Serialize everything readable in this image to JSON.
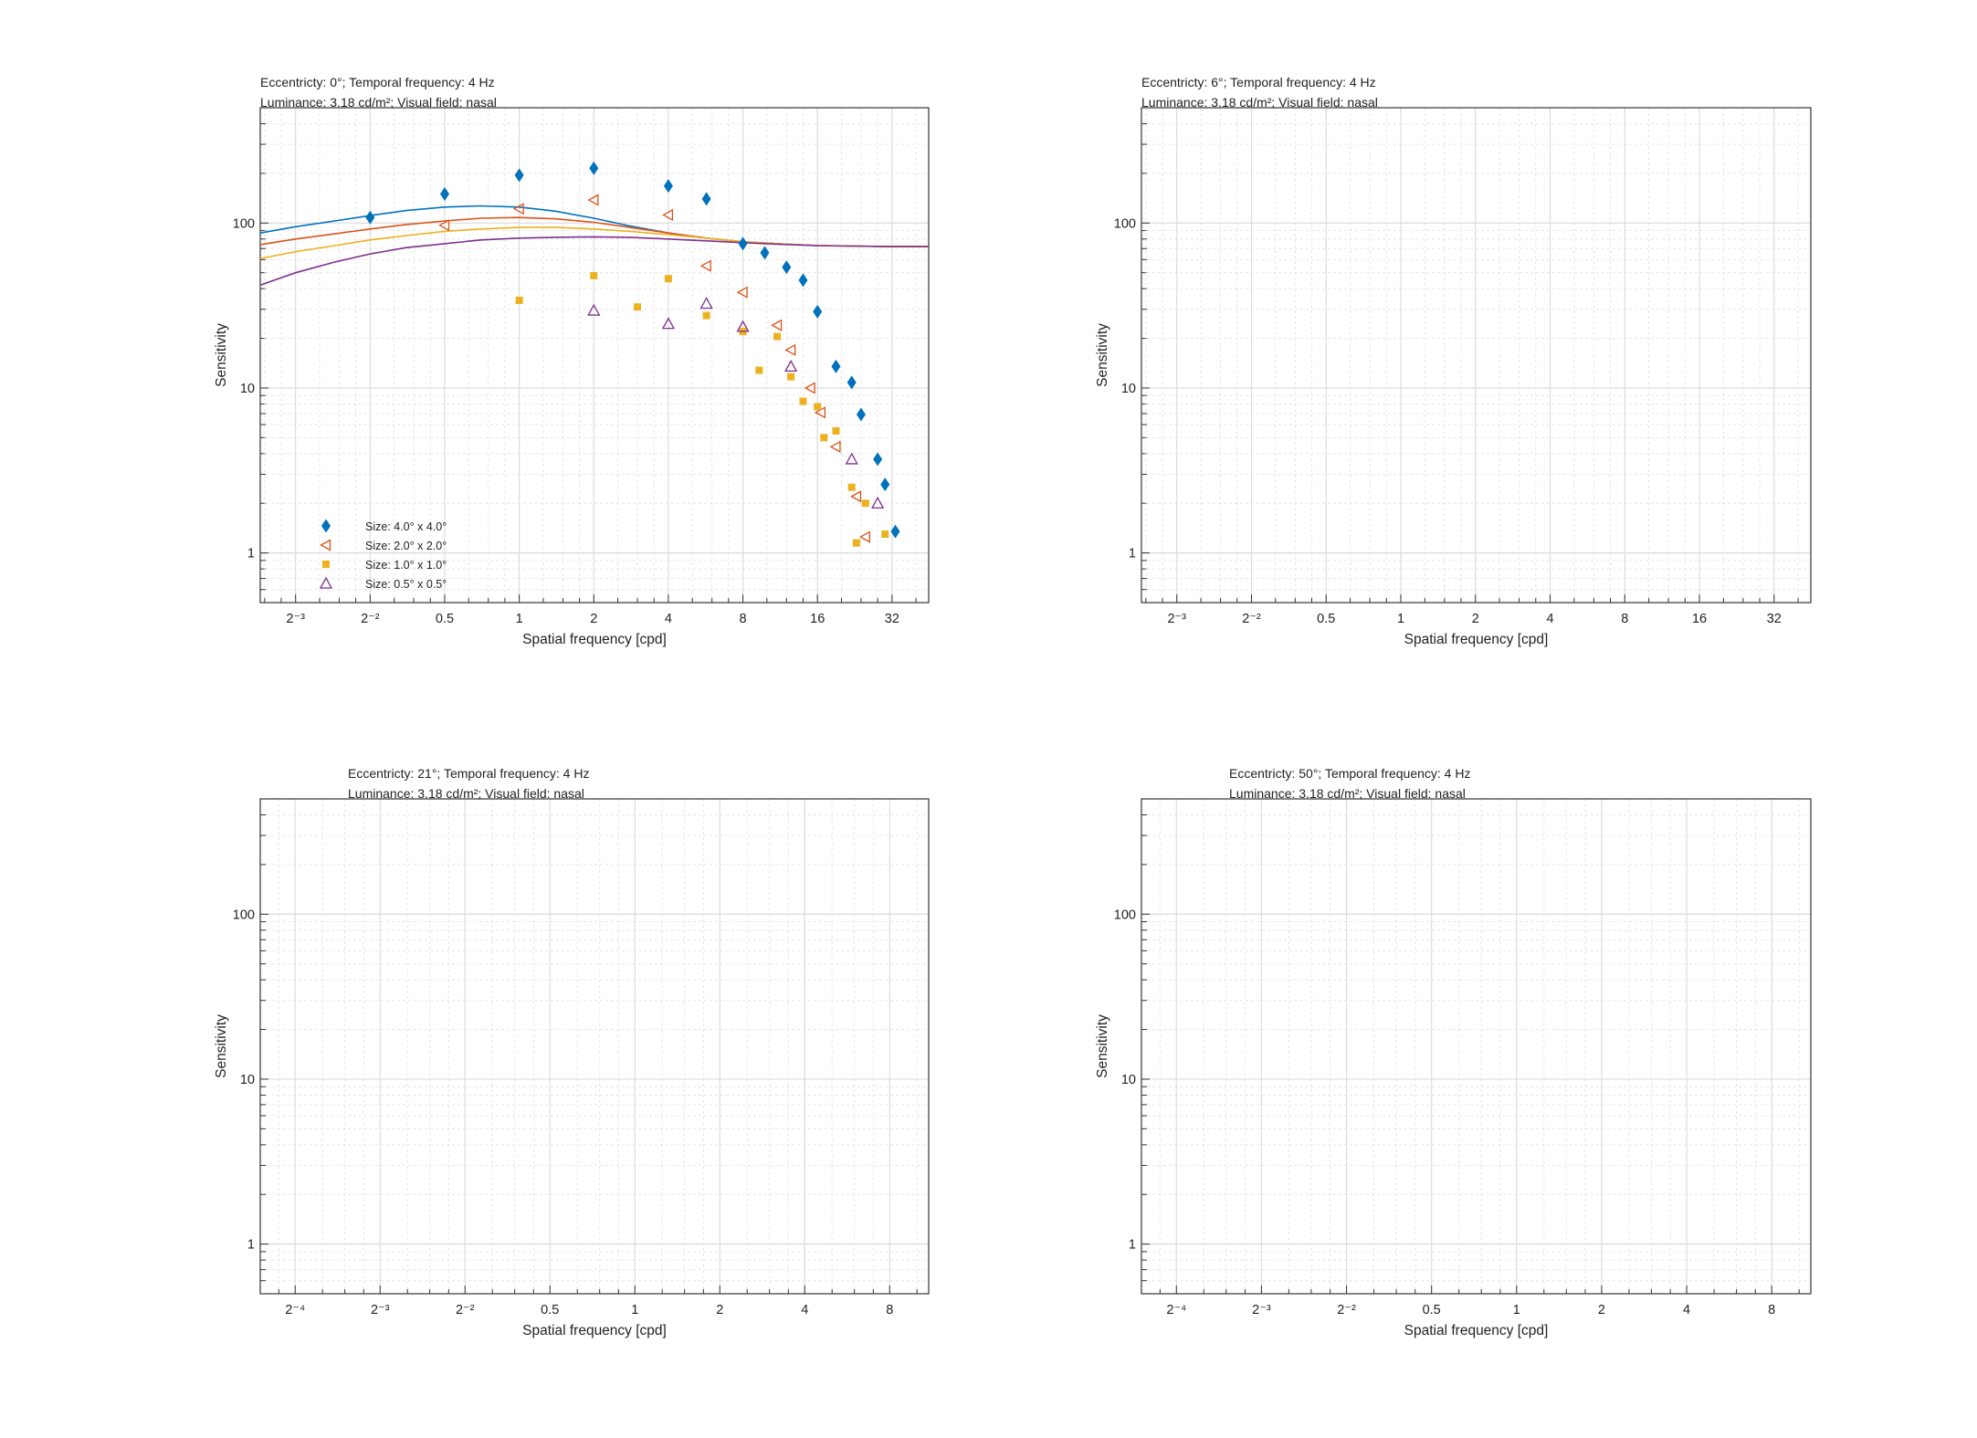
{
  "chart_data": [
    {
      "type": "scatter",
      "title_lines": [
        "Eccentricty: 0°; Temporal frequency: 4 Hz",
        "Luminance: 3.18 cd/m²; Visual field: nasal"
      ],
      "xlabel": "Spatial frequency [cpd]",
      "ylabel": "Sensitivity",
      "xscale": "log2",
      "yscale": "log10",
      "xlim": [
        0.09,
        45
      ],
      "ylim": [
        0.5,
        500
      ],
      "xticks": [
        0.125,
        0.25,
        0.5,
        1,
        2,
        4,
        8,
        16,
        32
      ],
      "xtick_labels": [
        "2⁻³",
        "2⁻²",
        "0.5",
        "1",
        "2",
        "4",
        "8",
        "16",
        "32"
      ],
      "yticks": [
        1,
        10,
        100
      ],
      "ytick_labels": [
        "1",
        "10",
        "100"
      ],
      "grid": true,
      "legend_position": "bottom-left",
      "series": [
        {
          "name": "Size: 4.0° x 4.0°",
          "marker": "diamond",
          "color": "#0072BD",
          "x": [
            0.25,
            0.5,
            1,
            2,
            4,
            5.7,
            8,
            9.8,
            12,
            14,
            16,
            19,
            22,
            24,
            28,
            30,
            33
          ],
          "y": [
            108,
            150,
            195,
            215,
            168,
            140,
            75,
            66,
            54,
            45,
            29,
            13.5,
            10.8,
            6.9,
            3.7,
            2.6,
            1.35
          ]
        },
        {
          "name": "Size: 2.0° x 2.0°",
          "marker": "triangle-left",
          "color": "#D95319",
          "x": [
            0.5,
            1,
            2,
            4,
            5.7,
            8,
            11,
            12.5,
            15,
            16.5,
            19,
            23,
            25
          ],
          "y": [
            97,
            122,
            138,
            112,
            55,
            38,
            24,
            17,
            10,
            7.1,
            4.4,
            2.2,
            1.25
          ]
        },
        {
          "name": "Size: 1.0° x 1.0°",
          "marker": "square",
          "color": "#EDB120",
          "x": [
            1,
            2,
            3,
            4,
            5.7,
            8,
            9.3,
            11,
            12.5,
            14,
            16,
            17,
            19,
            22,
            23,
            25,
            30
          ],
          "y": [
            34,
            48,
            31,
            46,
            27.5,
            22,
            12.8,
            20.5,
            11.7,
            8.3,
            7.7,
            5.0,
            5.5,
            2.5,
            1.15,
            2.0,
            1.3
          ]
        },
        {
          "name": "Size: 0.5° x 0.5°",
          "marker": "triangle-up",
          "color": "#7E2F8E",
          "x": [
            2,
            4,
            5.7,
            8,
            12.5,
            22,
            28
          ],
          "y": [
            29.5,
            24.5,
            32.5,
            23.5,
            13.5,
            3.7,
            2.0
          ]
        }
      ],
      "curves": [
        {
          "series": "Size: 4.0° x 4.0°",
          "color": "#0072BD",
          "x": [
            0.09,
            0.125,
            0.18,
            0.25,
            0.35,
            0.5,
            0.7,
            1,
            1.4,
            2,
            2.8,
            4,
            5.7,
            8,
            11,
            16,
            22,
            32,
            45
          ],
          "y": [
            87,
            95,
            103,
            111,
            119,
            125,
            127,
            125,
            118,
            107,
            96,
            87,
            81,
            77,
            75,
            73,
            72.5,
            72,
            72
          ]
        },
        {
          "series": "Size: 2.0° x 2.0°",
          "color": "#D95319",
          "x": [
            0.09,
            0.125,
            0.18,
            0.25,
            0.35,
            0.5,
            0.7,
            1,
            1.4,
            2,
            2.8,
            4,
            5.7,
            8,
            11,
            16,
            22,
            32,
            45
          ],
          "y": [
            74,
            80,
            86,
            92,
            98,
            103,
            107,
            108,
            106,
            101,
            94,
            87,
            81,
            77,
            75,
            73,
            72.5,
            72,
            72
          ]
        },
        {
          "series": "Size: 1.0° x 1.0°",
          "color": "#EDB120",
          "x": [
            0.09,
            0.125,
            0.18,
            0.25,
            0.35,
            0.5,
            0.7,
            1,
            1.4,
            2,
            2.8,
            4,
            5.7,
            8,
            11,
            16,
            22,
            32,
            45
          ],
          "y": [
            61,
            67,
            73,
            79,
            84,
            89,
            92,
            94,
            94,
            92,
            89,
            85,
            81,
            77,
            75,
            73,
            72.5,
            72,
            72
          ]
        },
        {
          "series": "Size: 0.5° x 0.5°",
          "color": "#7E2F8E",
          "x": [
            0.09,
            0.125,
            0.18,
            0.25,
            0.35,
            0.5,
            0.7,
            1,
            1.4,
            2,
            2.8,
            4,
            5.7,
            8,
            11,
            16,
            22,
            32,
            45
          ],
          "y": [
            42,
            50,
            58,
            65,
            71,
            75,
            79,
            81,
            82,
            82.5,
            82,
            80,
            78,
            76,
            74.5,
            73,
            72.5,
            72,
            72
          ]
        }
      ]
    },
    {
      "type": "scatter",
      "title_lines": [
        "Eccentricty: 6°; Temporal frequency: 4 Hz",
        "Luminance: 3.18 cd/m²; Visual field: nasal"
      ],
      "xlabel": "Spatial frequency [cpd]",
      "ylabel": "Sensitivity",
      "xscale": "log2",
      "yscale": "log10",
      "xlim": [
        0.09,
        45
      ],
      "ylim": [
        0.5,
        500
      ],
      "xticks": [
        0.125,
        0.25,
        0.5,
        1,
        2,
        4,
        8,
        16,
        32
      ],
      "xtick_labels": [
        "2⁻³",
        "2⁻²",
        "0.5",
        "1",
        "2",
        "4",
        "8",
        "16",
        "32"
      ],
      "yticks": [
        1,
        10,
        100
      ],
      "ytick_labels": [
        "1",
        "10",
        "100"
      ],
      "grid": true,
      "series": []
    },
    {
      "type": "scatter",
      "title_lines": [
        "Eccentricty: 21°; Temporal frequency: 4 Hz",
        "Luminance: 3.18 cd/m²; Visual field: nasal"
      ],
      "xlabel": "Spatial frequency [cpd]",
      "ylabel": "Sensitivity",
      "xscale": "log2",
      "yscale": "log10",
      "xlim": [
        0.047,
        11
      ],
      "ylim": [
        0.5,
        500
      ],
      "xticks": [
        0.0625,
        0.125,
        0.25,
        0.5,
        1,
        2,
        4,
        8
      ],
      "xtick_labels": [
        "2⁻⁴",
        "2⁻³",
        "2⁻²",
        "0.5",
        "1",
        "2",
        "4",
        "8"
      ],
      "yticks": [
        1,
        10,
        100
      ],
      "ytick_labels": [
        "1",
        "10",
        "100"
      ],
      "grid": true,
      "series": []
    },
    {
      "type": "scatter",
      "title_lines": [
        "Eccentricty: 50°; Temporal frequency: 4 Hz",
        "Luminance: 3.18 cd/m²; Visual field: nasal"
      ],
      "xlabel": "Spatial frequency [cpd]",
      "ylabel": "Sensitivity",
      "xscale": "log2",
      "yscale": "log10",
      "xlim": [
        0.047,
        11
      ],
      "ylim": [
        0.5,
        500
      ],
      "xticks": [
        0.0625,
        0.125,
        0.25,
        0.5,
        1,
        2,
        4,
        8
      ],
      "xtick_labels": [
        "2⁻⁴",
        "2⁻³",
        "2⁻²",
        "0.5",
        "1",
        "2",
        "4",
        "8"
      ],
      "yticks": [
        1,
        10,
        100
      ],
      "ytick_labels": [
        "1",
        "10",
        "100"
      ],
      "grid": true,
      "series": []
    }
  ]
}
